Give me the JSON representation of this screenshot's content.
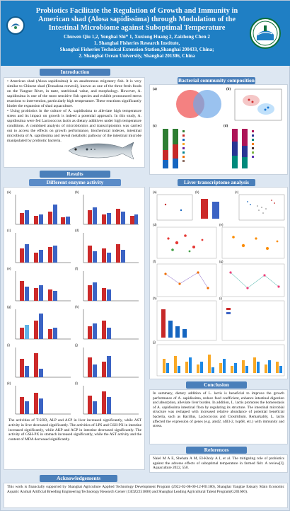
{
  "header": {
    "title": "Probiotics Facilitate the Regulation of Growth and Immunity in American shad (Alosa sapidissima) through Modulation of the Intestinal Microbiome against Suboptimal Temperature",
    "authors": "Chuwen Qiu 1,2, Yonghai Shi* 1, Xuxiong Huang 2, Zaizhong Chen 2",
    "aff1": "1. Shanghai Fisheries Research Institute,",
    "aff2": "Shanghai Fisheries Technical Extension Station,Shanghai 200433, China;",
    "aff3": "2. Shanghai Ocean University, Shanghai 201306, China"
  },
  "introduction": {
    "heading": "Introduction",
    "p1": "• American shad (Alosa sapidissima) is an anadromous migratory fish. It is very similar to Chinese shad (Tenualosa reevesii), known as one of the three fresh foods on the Yangtze River, in taste, nutritional value, and morphology. However, A. sapidissima is one of the most sensitive fish species and exhibit pronounced stress reactions to intervention, particularly high temperature. These reactions significantly hinder the expansion of shad aquaculture.",
    "p2": "• Using probiotics in the culture of A. sapidissima to alleviate high temperature stress and its impact on growth is indeed a potential approach. In this study, A. sapidissima were fed Lactococcus lactis as dietary additives under high temperature conditions. A combined analysis of microbiomics and transcriptomics was carried out to access the effects on growth performance, biochemical indexes, intestinal microbiota of A. sapidissima and reveal metabolic pathway of the intestinal microbe manipulated by probiotic bacteria."
  },
  "bacterial": {
    "heading": "Bacterial community composition"
  },
  "results": {
    "heading": "Results",
    "enzyme_heading": "Different enzyme activity",
    "enzyme_text": "The activities of T-SOD, ALP and ACP in liver increased significantly, while AST activity in liver decreased significantly. The activities of LPS and GSH-PX in intestine increased significantly, while AKP and ACP in intestine decreased significantly. The activity of GSH-PX in stomach increased significantly, while the AST activity and the content of MDA decreased significantly."
  },
  "liver": {
    "heading": "Liver transcriptome analysis"
  },
  "conclusion": {
    "heading": "Conclusion",
    "text": "In summary, dietary addition of L. lactis is beneficial to improve the growth performance of A. sapidissima, reduce feed coefficient, enhance intestinal digestion and absorption, alleviate liver burden. In addition, L. lactis promotes the homeostasis of A. sapidissima intestinal flora by regulating its structure. The intestinal microbial structure was reshaped with increased relative abundance of potential beneficial bacteria, such as Bacillus, Lactococcus and Clostridium. Remarkably, L. lactis affected the expression of genes (e.g. amd2, nfil3-2, hsp68, etc.) with immunity and stress."
  },
  "references": {
    "heading": "References",
    "text": "Naiel M A E, Shehata A M, El-Kholy A I, et al. The mitigating role of probiotics against the adverse effects of suboptimal temperature in farmed fish: A review[J]. Aquaculture 2022, 550."
  },
  "acknowledgements": {
    "heading": "Acknowledgements",
    "text": "This work is financially supported by Shanghai Agriculture Applied Technology Development Program (2022-02-08-00-12-F01180), Shanghai Yangtze Estuary Main Economic Aquatic Animal Artificial Breeding Engineering Technology Research Center (13DZ2251800) and Shanghai Leading Agricultural Talent Program(G201600)."
  },
  "colors": {
    "header": "#1f7fc4",
    "section": "#4a7fba",
    "bar_red": "#cc2a2a",
    "bar_blue": "#3b63c4",
    "bar_lightblue": "#5fb3e6"
  }
}
